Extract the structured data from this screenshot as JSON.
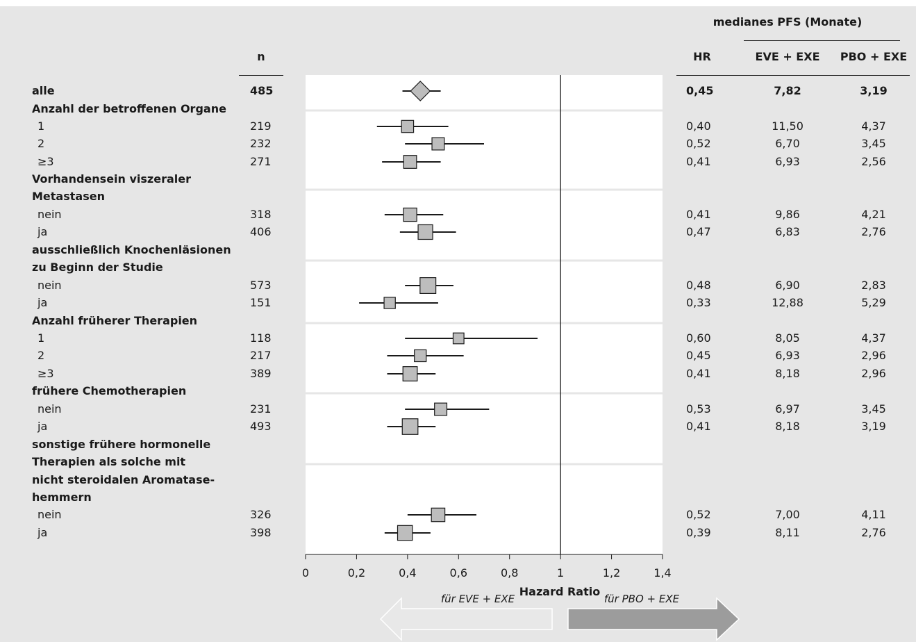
{
  "headers": {
    "n": "n",
    "pfs_group": "medianes PFS (Monate)",
    "hr": "HR",
    "eve": "EVE + EXE",
    "pbo": "PBO + EXE"
  },
  "rows": [
    {
      "label": "alle",
      "kind": "overall",
      "n": "485",
      "hr": "0,45",
      "eve": "7,82",
      "pbo": "3,19",
      "est": 0.45,
      "lo": 0.38,
      "hi": 0.53,
      "weight": 1.0
    },
    {
      "label": "Anzahl der betroffenen Organe",
      "kind": "group"
    },
    {
      "label": "1",
      "kind": "sub",
      "n": "219",
      "hr": "0,40",
      "eve": "11,50",
      "pbo": "4,37",
      "est": 0.4,
      "lo": 0.28,
      "hi": 0.56,
      "weight": 0.45
    },
    {
      "label": "2",
      "kind": "sub",
      "n": "232",
      "hr": "0,52",
      "eve": "6,70",
      "pbo": "3,45",
      "est": 0.52,
      "lo": 0.39,
      "hi": 0.7,
      "weight": 0.48
    },
    {
      "label": "≥3",
      "kind": "sub",
      "n": "271",
      "hr": "0,41",
      "eve": "6,93",
      "pbo": "2,56",
      "est": 0.41,
      "lo": 0.3,
      "hi": 0.53,
      "weight": 0.55
    },
    {
      "label": "Vorhandensein viszeraler",
      "kind": "group"
    },
    {
      "label": "Metastasen",
      "kind": "group"
    },
    {
      "label": "nein",
      "kind": "sub",
      "n": "318",
      "hr": "0,41",
      "eve": "9,86",
      "pbo": "4,21",
      "est": 0.41,
      "lo": 0.31,
      "hi": 0.54,
      "weight": 0.6
    },
    {
      "label": "ja",
      "kind": "sub",
      "n": "406",
      "hr": "0,47",
      "eve": "6,83",
      "pbo": "2,76",
      "est": 0.47,
      "lo": 0.37,
      "hi": 0.59,
      "weight": 0.75
    },
    {
      "label": "ausschließlich Knochenläsionen",
      "kind": "group"
    },
    {
      "label": "zu Beginn der Studie",
      "kind": "group"
    },
    {
      "label": "nein",
      "kind": "sub",
      "n": "573",
      "hr": "0,48",
      "eve": "6,90",
      "pbo": "2,83",
      "est": 0.48,
      "lo": 0.39,
      "hi": 0.58,
      "weight": 0.9
    },
    {
      "label": "ja",
      "kind": "sub",
      "n": "151",
      "hr": "0,33",
      "eve": "12,88",
      "pbo": "5,29",
      "est": 0.33,
      "lo": 0.21,
      "hi": 0.52,
      "weight": 0.35
    },
    {
      "label": "Anzahl früherer Therapien",
      "kind": "group"
    },
    {
      "label": "1",
      "kind": "sub",
      "n": "118",
      "hr": "0,60",
      "eve": "8,05",
      "pbo": "4,37",
      "est": 0.6,
      "lo": 0.39,
      "hi": 0.91,
      "weight": 0.3
    },
    {
      "label": "2",
      "kind": "sub",
      "n": "217",
      "hr": "0,45",
      "eve": "6,93",
      "pbo": "2,96",
      "est": 0.45,
      "lo": 0.32,
      "hi": 0.62,
      "weight": 0.42
    },
    {
      "label": "≥3",
      "kind": "sub",
      "n": "389",
      "hr": "0,41",
      "eve": "8,18",
      "pbo": "2,96",
      "est": 0.41,
      "lo": 0.32,
      "hi": 0.51,
      "weight": 0.72
    },
    {
      "label": "frühere Chemotherapien",
      "kind": "group"
    },
    {
      "label": "nein",
      "kind": "sub",
      "n": "231",
      "hr": "0,53",
      "eve": "6,97",
      "pbo": "3,45",
      "est": 0.53,
      "lo": 0.39,
      "hi": 0.72,
      "weight": 0.48
    },
    {
      "label": "ja",
      "kind": "sub",
      "n": "493",
      "hr": "0,41",
      "eve": "8,18",
      "pbo": "3,19",
      "est": 0.41,
      "lo": 0.32,
      "hi": 0.51,
      "weight": 0.88
    },
    {
      "label": "sonstige frühere hormonelle",
      "kind": "group"
    },
    {
      "label": "Therapien als solche mit",
      "kind": "group"
    },
    {
      "label": "nicht steroidalen Aromatase-",
      "kind": "group"
    },
    {
      "label": "hemmern",
      "kind": "group"
    },
    {
      "label": "nein",
      "kind": "sub",
      "n": "326",
      "hr": "0,52",
      "eve": "7,00",
      "pbo": "4,11",
      "est": 0.52,
      "lo": 0.4,
      "hi": 0.67,
      "weight": 0.62
    },
    {
      "label": "ja",
      "kind": "sub",
      "n": "398",
      "hr": "0,39",
      "eve": "8,11",
      "pbo": "2,76",
      "est": 0.39,
      "lo": 0.31,
      "hi": 0.49,
      "weight": 0.78
    }
  ],
  "chart_data": {
    "type": "forest",
    "xlabel": "Hazard Ratio",
    "xlim": [
      0,
      1.4
    ],
    "xticks": [
      0,
      0.2,
      0.4,
      0.6,
      0.8,
      1,
      1.2,
      1.4
    ],
    "xtick_labels": [
      "0",
      "0,2",
      "0,4",
      "0,6",
      "0,8",
      "1",
      "1,2",
      "1,4"
    ],
    "reference_line": 1,
    "marker_color": "#bdbdbd",
    "left_arrow_label": "für EVE + EXE",
    "right_arrow_label": "für PBO + EXE",
    "left_arrow_color": "#e8e8e8",
    "right_arrow_color": "#9c9c9c"
  }
}
